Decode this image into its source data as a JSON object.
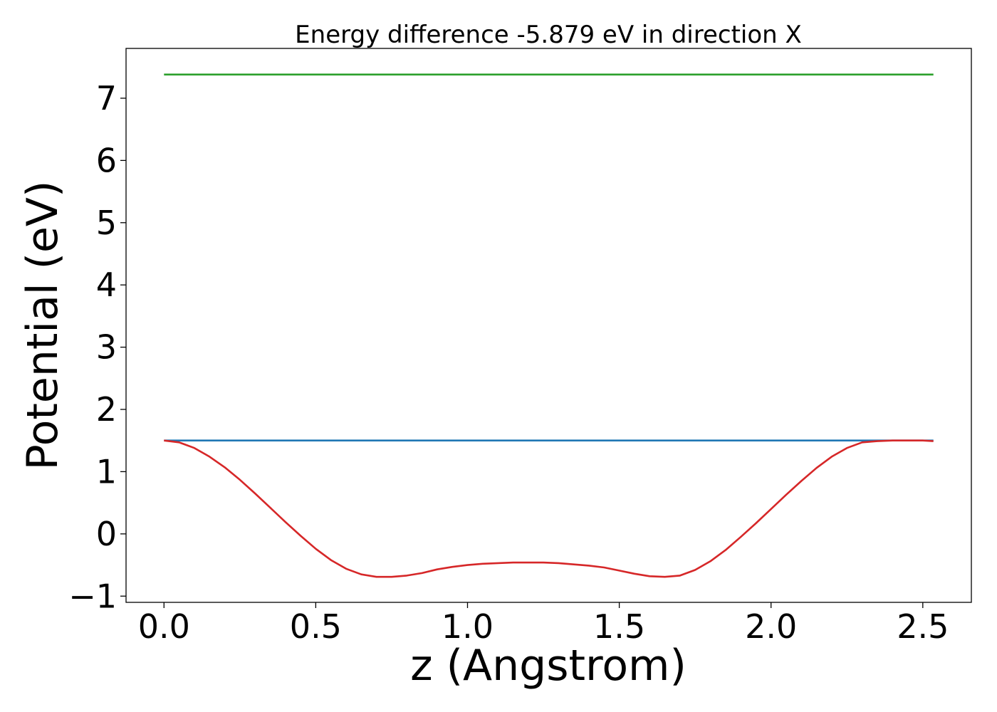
{
  "chart_data": {
    "type": "line",
    "title": "Energy difference -5.879 eV in direction X",
    "xlabel": "z (Angstrom)",
    "ylabel": "Potential (eV)",
    "xlim": [
      -0.125,
      2.66
    ],
    "ylim": [
      -1.1,
      7.8
    ],
    "grid": false,
    "x_ticks": [
      {
        "value": 0.0,
        "label": "0.0"
      },
      {
        "value": 0.5,
        "label": "0.5"
      },
      {
        "value": 1.0,
        "label": "1.0"
      },
      {
        "value": 1.5,
        "label": "1.5"
      },
      {
        "value": 2.0,
        "label": "2.0"
      },
      {
        "value": 2.5,
        "label": "2.5"
      }
    ],
    "y_ticks": [
      {
        "value": -1,
        "label": "−1"
      },
      {
        "value": 0,
        "label": "0"
      },
      {
        "value": 1,
        "label": "1"
      },
      {
        "value": 2,
        "label": "2"
      },
      {
        "value": 3,
        "label": "3"
      },
      {
        "value": 4,
        "label": "4"
      },
      {
        "value": 5,
        "label": "5"
      },
      {
        "value": 6,
        "label": "6"
      },
      {
        "value": 7,
        "label": "7"
      }
    ],
    "series": [
      {
        "color": "#2ca02c",
        "x": [
          0.0,
          2.535
        ],
        "y": [
          7.38,
          7.38
        ]
      },
      {
        "color": "#1f77b4",
        "x": [
          0.0,
          2.535
        ],
        "y": [
          1.5,
          1.5
        ]
      },
      {
        "color": "#d62728",
        "x": [
          0.0,
          0.05,
          0.1,
          0.15,
          0.2,
          0.25,
          0.3,
          0.35,
          0.4,
          0.45,
          0.5,
          0.55,
          0.6,
          0.65,
          0.7,
          0.75,
          0.8,
          0.85,
          0.9,
          0.95,
          1.0,
          1.05,
          1.1,
          1.15,
          1.2,
          1.25,
          1.3,
          1.35,
          1.4,
          1.45,
          1.5,
          1.55,
          1.6,
          1.65,
          1.7,
          1.75,
          1.8,
          1.85,
          1.9,
          1.95,
          2.0,
          2.05,
          2.1,
          2.15,
          2.2,
          2.25,
          2.3,
          2.35,
          2.4,
          2.45,
          2.5,
          2.535
        ],
        "y": [
          1.5,
          1.47,
          1.38,
          1.24,
          1.07,
          0.87,
          0.65,
          0.42,
          0.19,
          -0.03,
          -0.24,
          -0.42,
          -0.56,
          -0.65,
          -0.69,
          -0.69,
          -0.67,
          -0.63,
          -0.57,
          -0.53,
          -0.5,
          -0.48,
          -0.47,
          -0.46,
          -0.46,
          -0.46,
          -0.47,
          -0.49,
          -0.51,
          -0.54,
          -0.59,
          -0.64,
          -0.68,
          -0.69,
          -0.67,
          -0.58,
          -0.44,
          -0.26,
          -0.05,
          0.17,
          0.4,
          0.63,
          0.85,
          1.06,
          1.24,
          1.38,
          1.47,
          1.49,
          1.5,
          1.5,
          1.5,
          1.49
        ]
      }
    ]
  }
}
